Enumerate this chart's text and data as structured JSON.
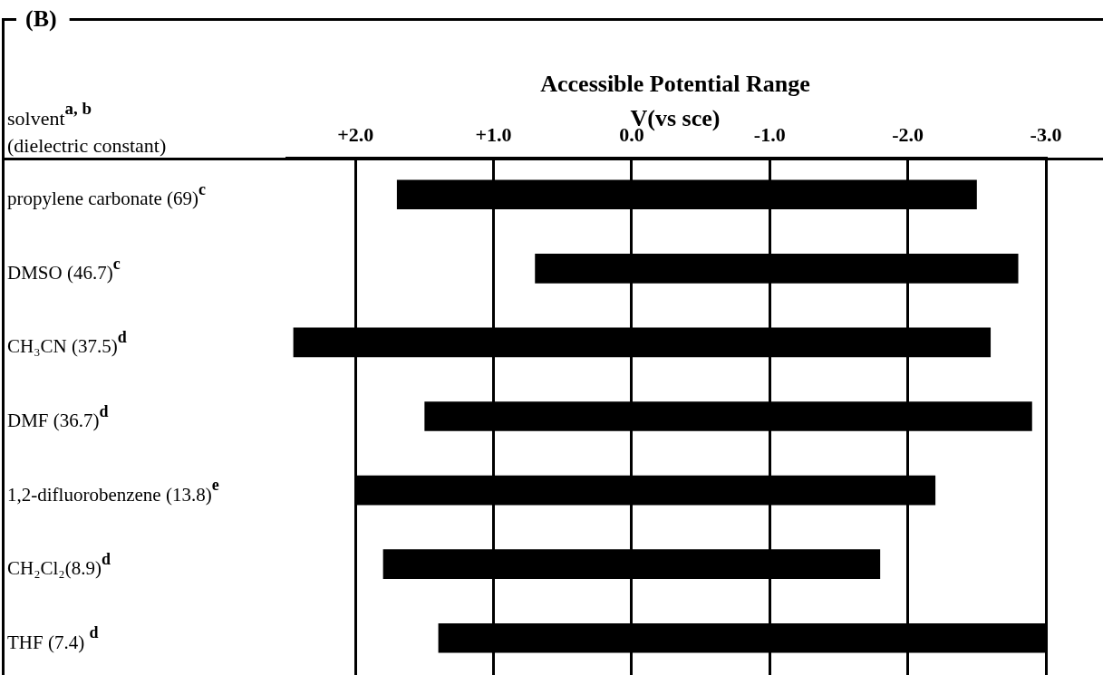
{
  "chart_data": {
    "type": "bar",
    "orientation": "horizontal",
    "title": "Accessible Potential Range",
    "xlabel": "V(vs sce)",
    "ylabel": "solvent$^{a, b}$\n(dielectric constant)",
    "categories": [
      "propylene carbonate (69)$^{c}$",
      "DMSO (46.7)$^{c}$",
      "CH₃CN (37.5)$^{d}$",
      "DMF (36.7)$^{d}$",
      "1,2-difluorobenzene (13.8)$^{e}$",
      "CH₂Cl₂(8.9)$^{d}$",
      "THF (7.4) $^{d}$"
    ],
    "base": [
      1.7,
      0.7,
      2.45,
      1.5,
      2.0,
      1.8,
      1.4
    ],
    "values": [
      -4.2,
      -3.5,
      -5.05,
      -4.4,
      -4.2,
      -3.6,
      -4.4
    ],
    "color": "#000000",
    "xlim": [
      2.5,
      -3.0
    ],
    "xticks": [
      {
        "value": 2,
        "label": "+2.0"
      },
      {
        "value": 1,
        "label": "+1.0"
      },
      {
        "value": 0,
        "label": "0.0"
      },
      {
        "value": -1,
        "label": "-1.0"
      },
      {
        "value": -2,
        "label": "-2.0"
      },
      {
        "value": -3,
        "label": "-3.0"
      }
    ],
    "grid": "x",
    "annotations": [
      "(B)"
    ]
  }
}
